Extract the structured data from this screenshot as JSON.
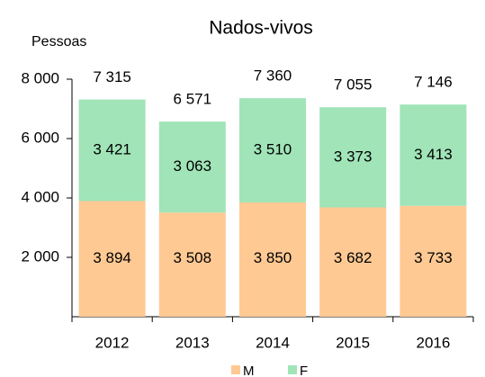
{
  "chart_data": {
    "type": "stacked_bar",
    "title": "Nados-vivos",
    "y_label": "Pessoas",
    "categories": [
      "2012",
      "2013",
      "2014",
      "2015",
      "2016"
    ],
    "series": [
      {
        "name": "M",
        "color": "#ffc993",
        "values": [
          3894,
          3508,
          3850,
          3682,
          3733
        ],
        "value_labels": [
          "3 894",
          "3 508",
          "3 850",
          "3 682",
          "3 733"
        ]
      },
      {
        "name": "F",
        "color": "#a0e4b8",
        "values": [
          3421,
          3063,
          3510,
          3373,
          3413
        ],
        "value_labels": [
          "3 421",
          "3 063",
          "3 510",
          "3 373",
          "3 413"
        ]
      }
    ],
    "totals": [
      7315,
      6571,
      7360,
      7055,
      7146
    ],
    "total_labels": [
      "7 315",
      "6 571",
      "7 360",
      "7 055",
      "7 146"
    ],
    "ylim": [
      0,
      8000
    ],
    "yticks": [
      {
        "value": 2000,
        "label": "2 000"
      },
      {
        "value": 4000,
        "label": "4 000"
      },
      {
        "value": 6000,
        "label": "6 000"
      },
      {
        "value": 8000,
        "label": "8 000"
      }
    ],
    "legend": "bottom"
  }
}
